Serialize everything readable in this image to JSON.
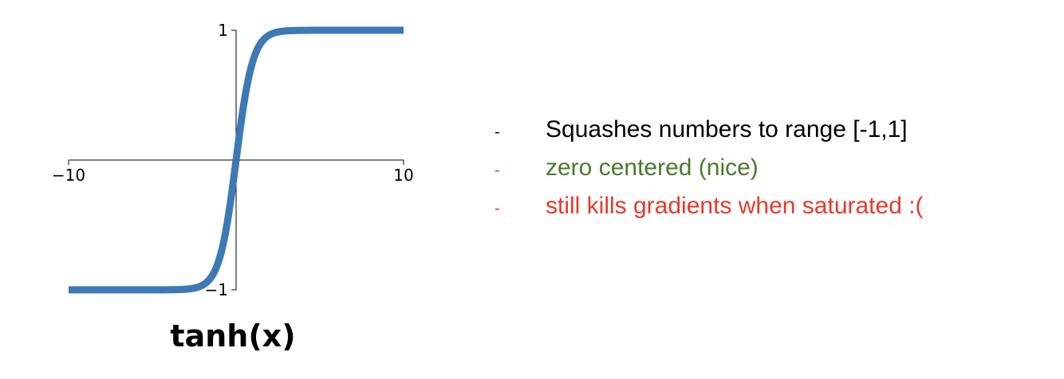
{
  "colors": {
    "line": "#3d79b5",
    "axis": "#000000",
    "bullet_1": "#000000",
    "bullet_2": "#4a7a2c",
    "bullet_3": "#e8392b"
  },
  "chart_data": {
    "type": "line",
    "title": "tanh(x)",
    "xlabel": "",
    "ylabel": "",
    "xlim": [
      -10,
      10
    ],
    "ylim": [
      -1,
      1
    ],
    "x_ticks": [
      {
        "value": -10,
        "label": "−10"
      },
      {
        "value": 10,
        "label": "10"
      }
    ],
    "y_ticks": [
      {
        "value": 1,
        "label": "1"
      },
      {
        "value": -1,
        "label": "−1"
      }
    ],
    "grid": false,
    "series": [
      {
        "function": "tanh",
        "x": [
          -10,
          -8,
          -6,
          -4,
          -3,
          -2,
          -1.5,
          -1,
          -0.5,
          0,
          0.5,
          1,
          1.5,
          2,
          3,
          4,
          6,
          8,
          10
        ],
        "y": [
          -1.0,
          -1.0,
          -1.0,
          -0.9993,
          -0.9951,
          -0.964,
          -0.9051,
          -0.7616,
          -0.4621,
          0.0,
          0.4621,
          0.7616,
          0.9051,
          0.964,
          0.9951,
          0.9993,
          1.0,
          1.0,
          1.0
        ]
      }
    ]
  },
  "bullets": [
    {
      "dash": "-",
      "text": "Squashes numbers to range [-1,1]"
    },
    {
      "dash": "-",
      "text": "zero centered (nice)"
    },
    {
      "dash": "-",
      "text": "still kills gradients when saturated :("
    }
  ]
}
